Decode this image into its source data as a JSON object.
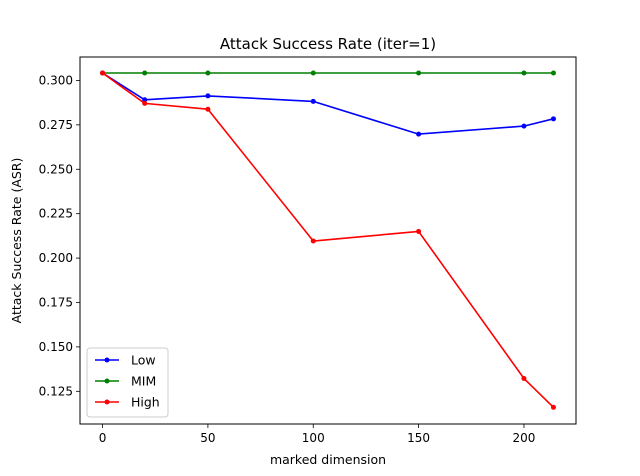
{
  "chart_data": {
    "type": "line",
    "title": "Attack Success Rate (iter=1)",
    "xlabel": "marked dimension",
    "ylabel": "Attack Success Rate (ASR)",
    "xlim": [
      -10.7,
      224.7
    ],
    "ylim": [
      0.1066,
      0.3132
    ],
    "xticks": [
      0,
      50,
      100,
      150,
      200
    ],
    "yticks": [
      0.125,
      0.15,
      0.175,
      0.2,
      0.225,
      0.25,
      0.275,
      0.3
    ],
    "ytick_labels": [
      "0.125",
      "0.150",
      "0.175",
      "0.200",
      "0.225",
      "0.250",
      "0.275",
      "0.300"
    ],
    "grid": false,
    "legend_position": "lower left",
    "series": [
      {
        "name": "Low",
        "color": "#0000ff",
        "x": [
          0,
          20,
          50,
          100,
          150,
          200,
          214
        ],
        "y": [
          0.3042,
          0.2891,
          0.2913,
          0.2882,
          0.2698,
          0.2743,
          0.2784
        ]
      },
      {
        "name": "MIM",
        "color": "#008000",
        "x": [
          0,
          20,
          50,
          100,
          150,
          200,
          214
        ],
        "y": [
          0.3042,
          0.3042,
          0.3042,
          0.3042,
          0.3042,
          0.3042,
          0.3042
        ]
      },
      {
        "name": "High",
        "color": "#ff0000",
        "x": [
          0,
          20,
          50,
          100,
          150,
          200,
          214
        ],
        "y": [
          0.3042,
          0.2871,
          0.2838,
          0.2096,
          0.215,
          0.1322,
          0.116
        ]
      }
    ]
  }
}
